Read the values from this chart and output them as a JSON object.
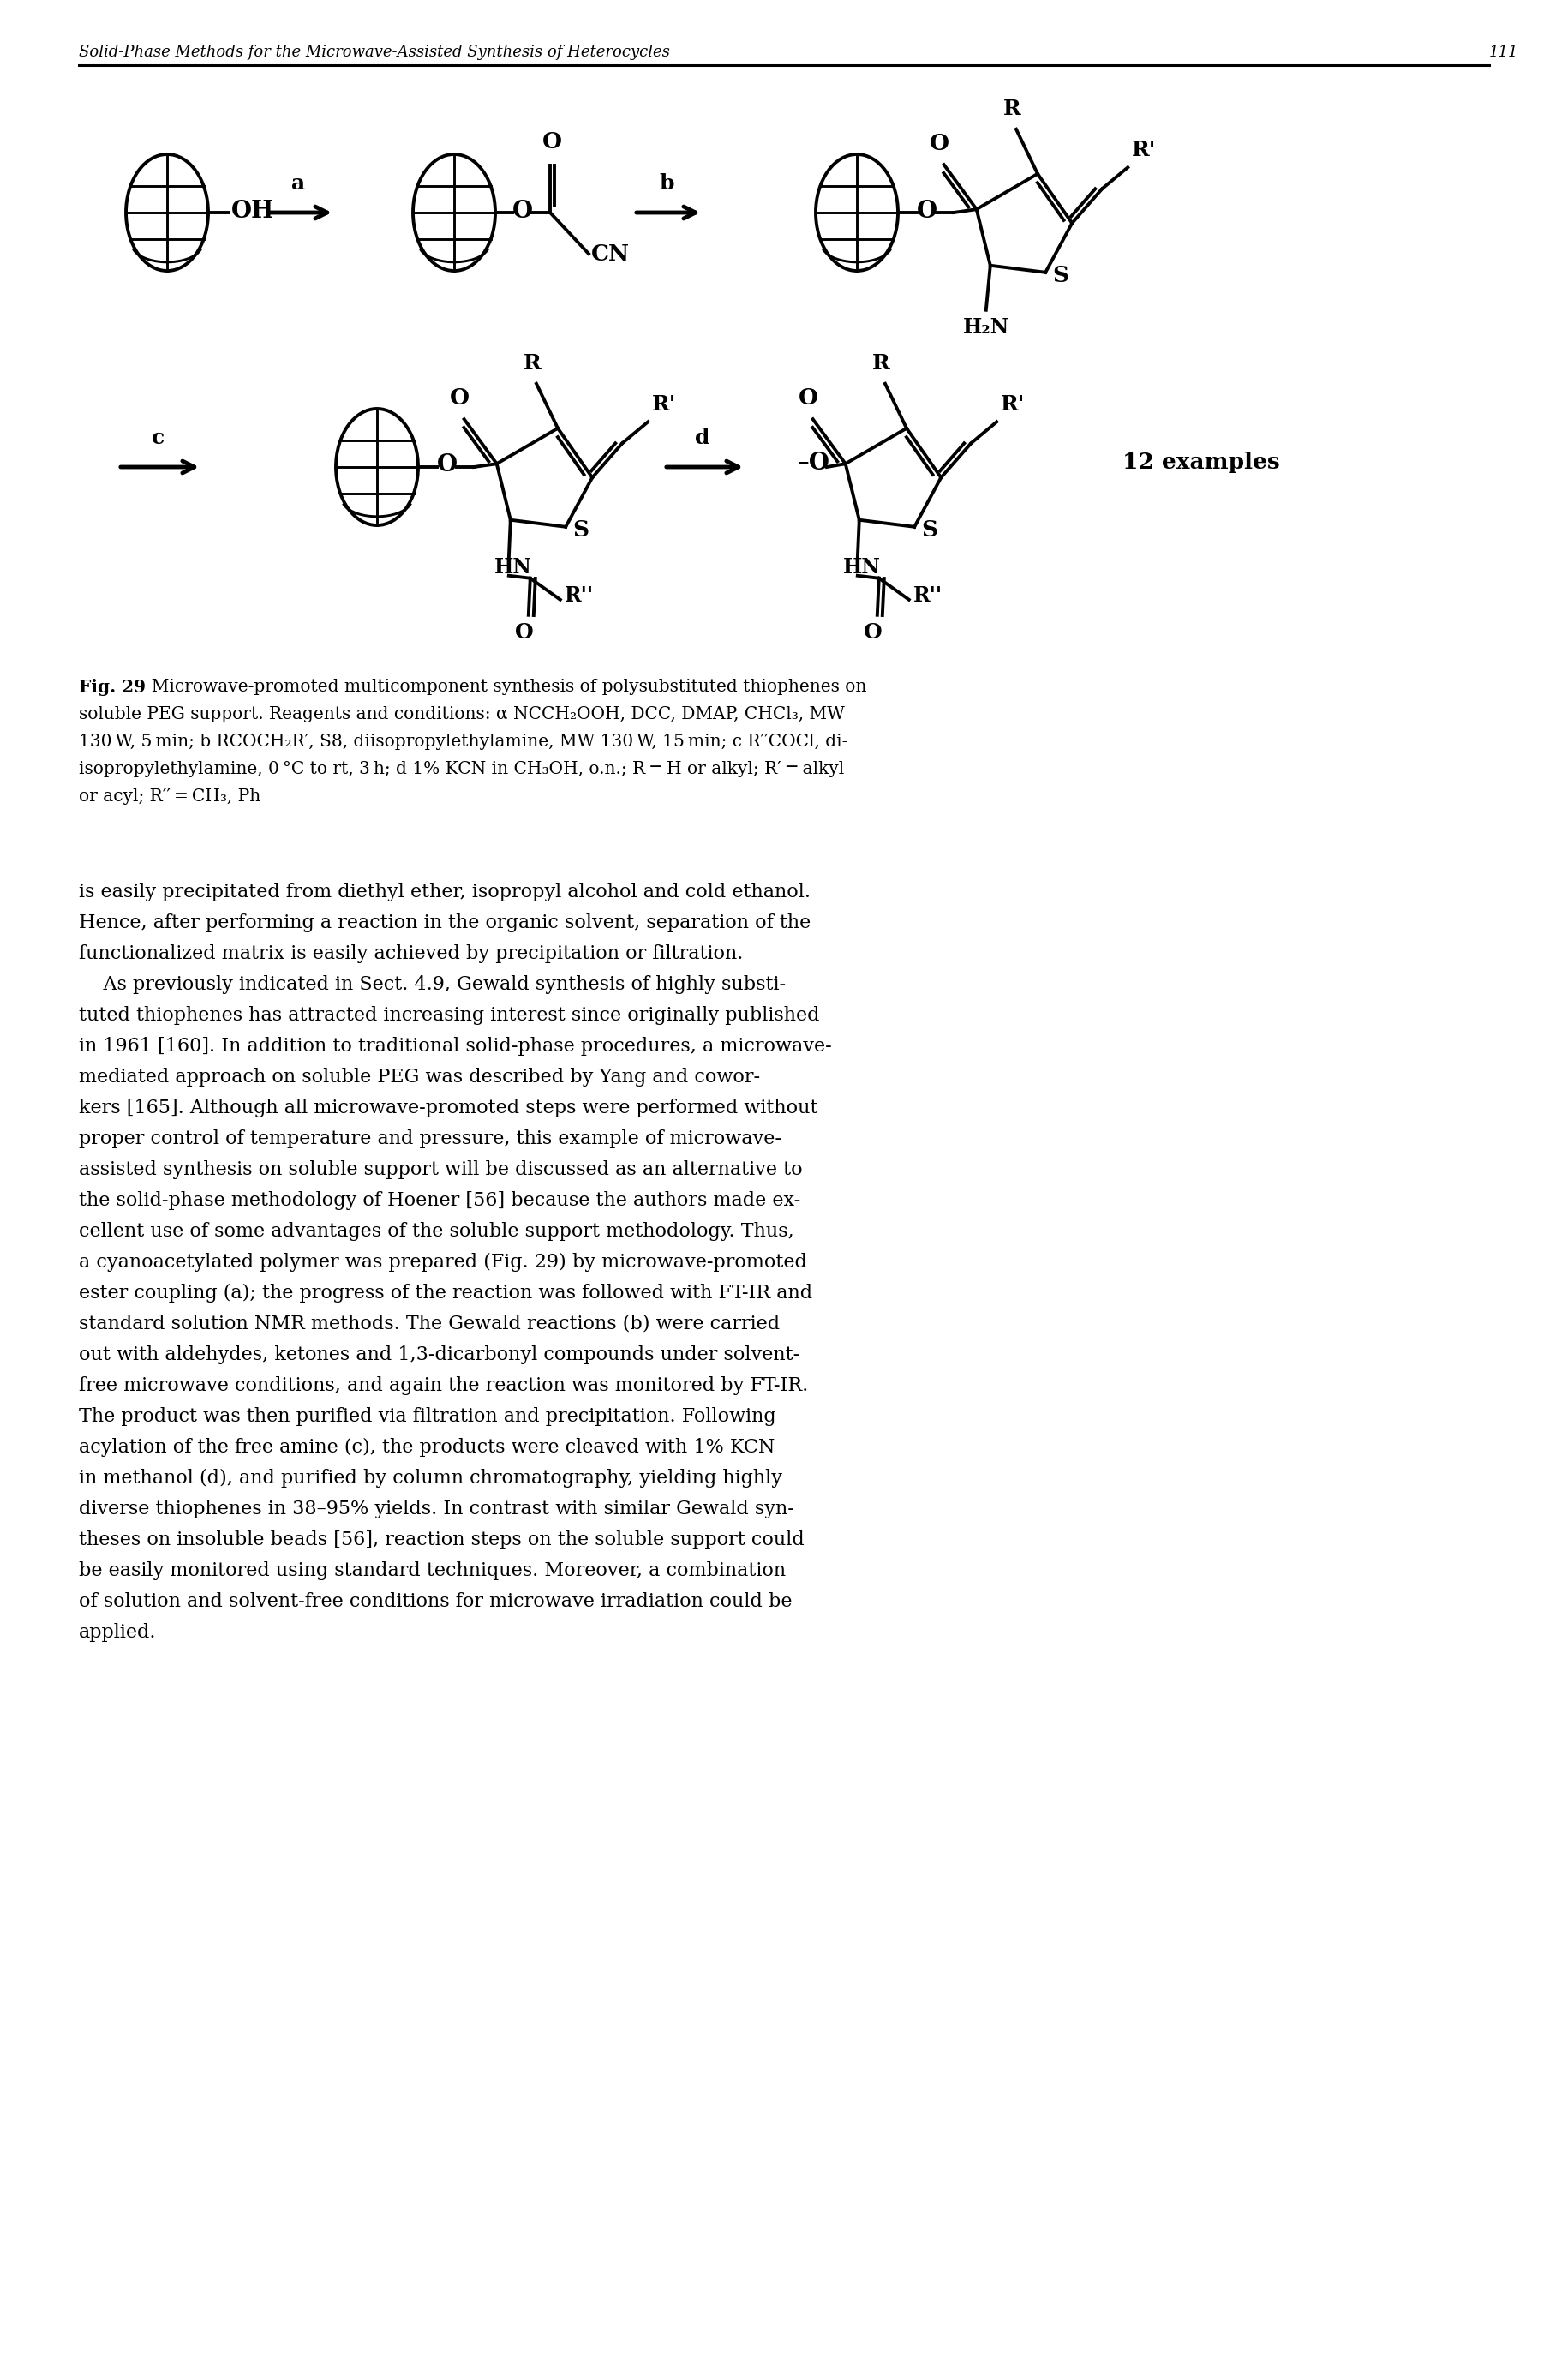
{
  "page_header": "Solid-Phase Methods for the Microwave-Assisted Synthesis of Heterocycles",
  "page_number": "111",
  "body_text": [
    "is easily precipitated from diethyl ether, isopropyl alcohol and cold ethanol.",
    "Hence, after performing a reaction in the organic solvent, separation of the",
    "functionalized matrix is easily achieved by precipitation or filtration.",
    "    As previously indicated in Sect. 4.9, Gewald synthesis of highly substi-",
    "tuted thiophenes has attracted increasing interest since originally published",
    "in 1961 [160]. In addition to traditional solid-phase procedures, a microwave-",
    "mediated approach on soluble PEG was described by Yang and cowor-",
    "kers [165]. Although all microwave-promoted steps were performed without",
    "proper control of temperature and pressure, this example of microwave-",
    "assisted synthesis on soluble support will be discussed as an alternative to",
    "the solid-phase methodology of Hoener [56] because the authors made ex-",
    "cellent use of some advantages of the soluble support methodology. Thus,",
    "a cyanoacetylated polymer was prepared (Fig. 29) by microwave-promoted",
    "ester coupling (a); the progress of the reaction was followed with FT-IR and",
    "standard solution NMR methods. The Gewald reactions (b) were carried",
    "out with aldehydes, ketones and 1,3-dicarbonyl compounds under solvent-",
    "free microwave conditions, and again the reaction was monitored by FT-IR.",
    "The product was then purified via filtration and precipitation. Following",
    "acylation of the free amine (c), the products were cleaved with 1% KCN",
    "in methanol (d), and purified by column chromatography, yielding highly",
    "diverse thiophenes in 38–95% yields. In contrast with similar Gewald syn-",
    "theses on insoluble beads [56], reaction steps on the soluble support could",
    "be easily monitored using standard techniques. Moreover, a combination",
    "of solution and solvent-free conditions for microwave irradiation could be",
    "applied."
  ],
  "bg_color": "#ffffff"
}
